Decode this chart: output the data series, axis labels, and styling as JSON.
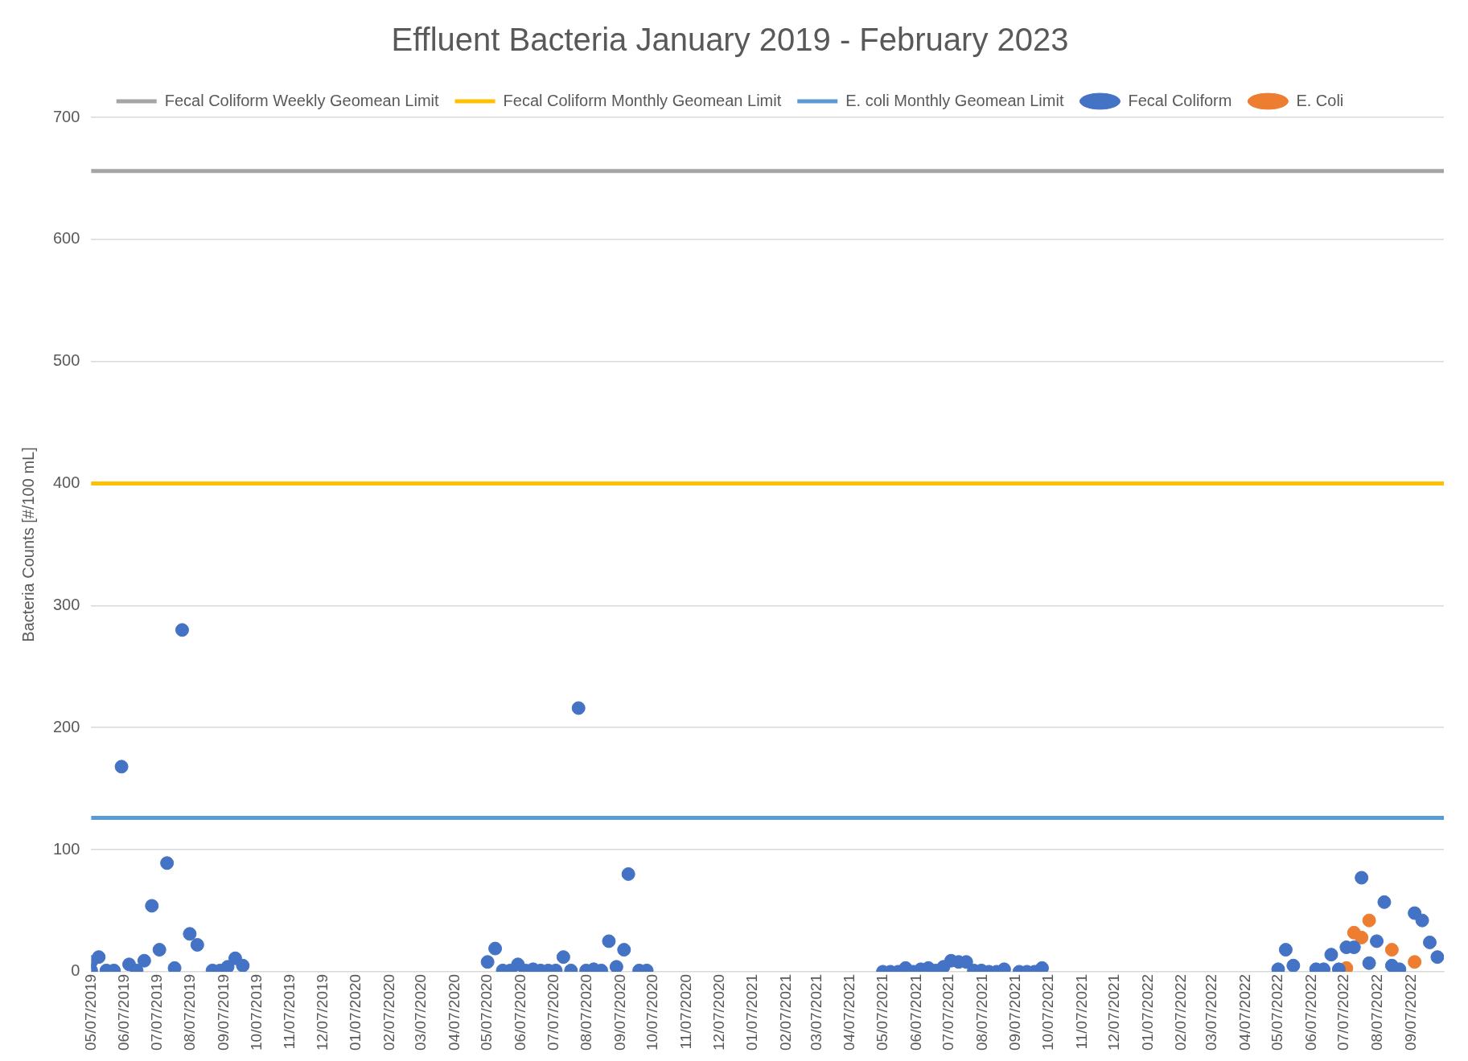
{
  "chart_data": {
    "type": "scatter",
    "title": "Effluent Bacteria January 2019 - February 2023",
    "ylabel": "Bacteria Counts [#/100 mL]",
    "xlim": [
      "2019-05-07",
      "2022-10-07"
    ],
    "xticks": [
      {
        "value": "2019-05-07",
        "label": "05/07/2019"
      },
      {
        "value": "2019-06-07",
        "label": "06/07/2019"
      },
      {
        "value": "2019-07-07",
        "label": "07/07/2019"
      },
      {
        "value": "2019-08-07",
        "label": "08/07/2019"
      },
      {
        "value": "2019-09-07",
        "label": "09/07/2019"
      },
      {
        "value": "2019-10-07",
        "label": "10/07/2019"
      },
      {
        "value": "2019-11-07",
        "label": "11/07/2019"
      },
      {
        "value": "2019-12-07",
        "label": "12/07/2019"
      },
      {
        "value": "2020-01-07",
        "label": "01/07/2020"
      },
      {
        "value": "2020-02-07",
        "label": "02/07/2020"
      },
      {
        "value": "2020-03-07",
        "label": "03/07/2020"
      },
      {
        "value": "2020-04-07",
        "label": "04/07/2020"
      },
      {
        "value": "2020-05-07",
        "label": "05/07/2020"
      },
      {
        "value": "2020-06-07",
        "label": "06/07/2020"
      },
      {
        "value": "2020-07-07",
        "label": "07/07/2020"
      },
      {
        "value": "2020-08-07",
        "label": "08/07/2020"
      },
      {
        "value": "2020-09-07",
        "label": "09/07/2020"
      },
      {
        "value": "2020-10-07",
        "label": "10/07/2020"
      },
      {
        "value": "2020-11-07",
        "label": "11/07/2020"
      },
      {
        "value": "2020-12-07",
        "label": "12/07/2020"
      },
      {
        "value": "2021-01-07",
        "label": "01/07/2021"
      },
      {
        "value": "2021-02-07",
        "label": "02/07/2021"
      },
      {
        "value": "2021-03-07",
        "label": "03/07/2021"
      },
      {
        "value": "2021-04-07",
        "label": "04/07/2021"
      },
      {
        "value": "2021-05-07",
        "label": "05/07/2021"
      },
      {
        "value": "2021-06-07",
        "label": "06/07/2021"
      },
      {
        "value": "2021-07-07",
        "label": "07/07/2021"
      },
      {
        "value": "2021-08-07",
        "label": "08/07/2021"
      },
      {
        "value": "2021-09-07",
        "label": "09/07/2021"
      },
      {
        "value": "2021-10-07",
        "label": "10/07/2021"
      },
      {
        "value": "2021-11-07",
        "label": "11/07/2021"
      },
      {
        "value": "2021-12-07",
        "label": "12/07/2021"
      },
      {
        "value": "2022-01-07",
        "label": "01/07/2022"
      },
      {
        "value": "2022-02-07",
        "label": "02/07/2022"
      },
      {
        "value": "2022-03-07",
        "label": "03/07/2022"
      },
      {
        "value": "2022-04-07",
        "label": "04/07/2022"
      },
      {
        "value": "2022-05-07",
        "label": "05/07/2022"
      },
      {
        "value": "2022-06-07",
        "label": "06/07/2022"
      },
      {
        "value": "2022-07-07",
        "label": "07/07/2022"
      },
      {
        "value": "2022-08-07",
        "label": "08/07/2022"
      },
      {
        "value": "2022-09-07",
        "label": "09/07/2022"
      }
    ],
    "ylim": [
      0,
      700
    ],
    "yticks": [
      0,
      100,
      200,
      300,
      400,
      500,
      600,
      700
    ],
    "grid": "y",
    "legend": "top",
    "marker": "circle",
    "series": [
      {
        "name": "Fecal Coliform Weekly Geomean Limit",
        "type": "line",
        "marker": "none",
        "color": "#a5a5a5",
        "x": [
          "2019-05-07",
          "2022-10-07"
        ],
        "values": [
          656,
          656
        ]
      },
      {
        "name": "Fecal Coliform Monthly Geomean Limit",
        "type": "line",
        "marker": "none",
        "color": "#ffc000",
        "x": [
          "2019-05-07",
          "2022-10-07"
        ],
        "values": [
          400,
          400
        ]
      },
      {
        "name": "E. coli Monthly Geomean Limit",
        "type": "line",
        "marker": "none",
        "color": "#5b9bd5",
        "x": [
          "2019-05-07",
          "2022-10-07"
        ],
        "values": [
          126,
          126
        ]
      },
      {
        "name": "Fecal Coliform",
        "color": "#4472c4",
        "x": [
          "2019-05-07",
          "2019-05-07",
          "2019-05-14",
          "2019-05-21",
          "2019-05-28",
          "2019-06-04",
          "2019-06-11",
          "2019-06-18",
          "2019-06-25",
          "2019-07-02",
          "2019-07-09",
          "2019-07-16",
          "2019-07-23",
          "2019-07-30",
          "2019-08-06",
          "2019-08-13",
          "2019-08-27",
          "2019-09-03",
          "2019-09-10",
          "2019-09-17",
          "2019-09-24",
          "2020-05-07",
          "2020-05-14",
          "2020-05-21",
          "2020-05-28",
          "2020-06-04",
          "2020-06-11",
          "2020-06-18",
          "2020-06-25",
          "2020-07-02",
          "2020-07-09",
          "2020-07-16",
          "2020-07-23",
          "2020-07-30",
          "2020-08-06",
          "2020-08-13",
          "2020-08-20",
          "2020-08-27",
          "2020-09-03",
          "2020-09-10",
          "2020-09-14",
          "2020-09-24",
          "2020-10-01",
          "2021-05-07",
          "2021-05-14",
          "2021-05-21",
          "2021-05-28",
          "2021-06-04",
          "2021-06-11",
          "2021-06-18",
          "2021-06-25",
          "2021-07-02",
          "2021-07-09",
          "2021-07-16",
          "2021-07-23",
          "2021-07-30",
          "2021-08-06",
          "2021-08-13",
          "2021-08-20",
          "2021-08-27",
          "2021-09-10",
          "2021-09-17",
          "2021-09-24",
          "2021-10-01",
          "2022-05-07",
          "2022-05-14",
          "2022-05-21",
          "2022-06-11",
          "2022-06-18",
          "2022-06-25",
          "2022-07-02",
          "2022-07-09",
          "2022-07-16",
          "2022-07-23",
          "2022-07-30",
          "2022-08-06",
          "2022-08-13",
          "2022-08-20",
          "2022-08-27",
          "2022-09-10",
          "2022-09-17",
          "2022-09-24",
          "2022-10-01"
        ],
        "values": [
          1,
          8,
          12,
          1,
          1,
          168,
          6,
          1,
          9,
          54,
          18,
          89,
          3,
          280,
          31,
          22,
          1,
          1,
          4,
          11,
          5,
          8,
          19,
          1,
          1,
          6,
          1,
          2,
          1,
          1,
          1,
          12,
          1,
          216,
          1,
          2,
          1,
          25,
          4,
          18,
          80,
          1,
          1,
          0,
          0,
          0,
          3,
          0,
          2,
          3,
          1,
          4,
          9,
          8,
          8,
          1,
          1,
          0,
          0,
          2,
          0,
          0,
          0,
          3,
          2,
          18,
          5,
          2,
          2,
          14,
          2,
          20,
          20,
          77,
          7,
          25,
          57,
          5,
          2,
          48,
          42,
          24,
          12
        ]
      },
      {
        "name": "E. Coli",
        "color": "#ed7d31",
        "x": [
          "2022-07-09",
          "2022-07-16",
          "2022-07-23",
          "2022-07-30",
          "2022-08-20",
          "2022-09-10"
        ],
        "values": [
          3,
          32,
          28,
          42,
          18,
          8
        ]
      }
    ]
  }
}
